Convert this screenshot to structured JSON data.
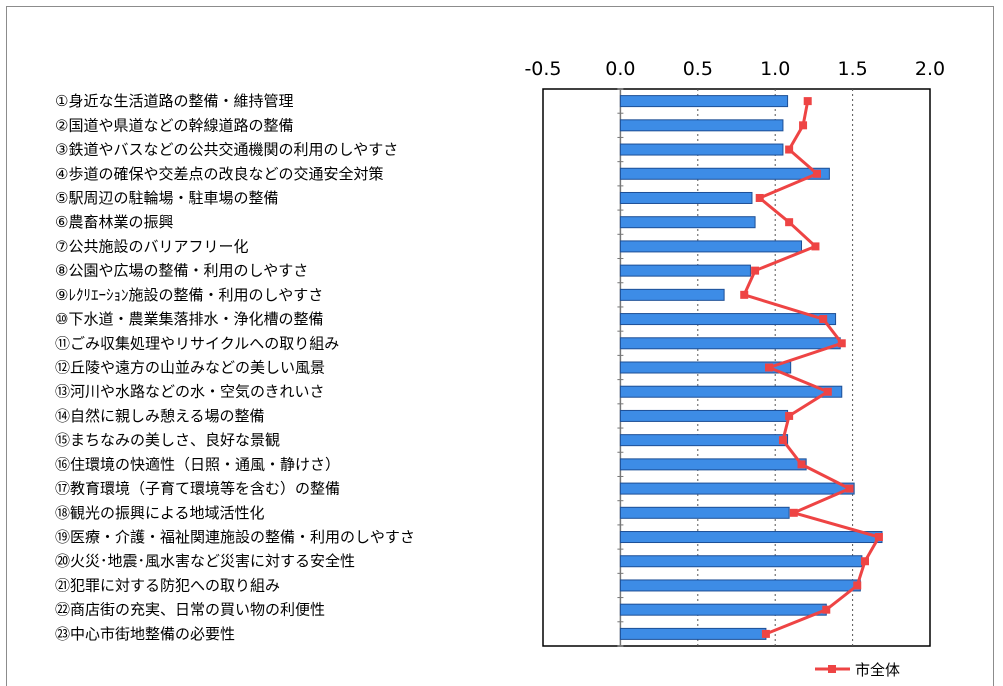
{
  "chart_data": {
    "type": "bar",
    "title": "",
    "xlabel": "",
    "ylabel": "",
    "xlim": [
      -0.5,
      2.0
    ],
    "ticks": [
      "-0.5",
      "0.0",
      "0.5",
      "1.0",
      "1.5",
      "2.0"
    ],
    "tick_values": [
      -0.5,
      0.0,
      0.5,
      1.0,
      1.5,
      2.0
    ],
    "grid": "dotted vertical at 0.5, 1.0, 1.5",
    "legend_position": "bottom-right",
    "categories": [
      "①身近な生活道路の整備・維持管理",
      "②国道や県道などの幹線道路の整備",
      "③鉄道やバスなどの公共交通機関の利用のしやすさ",
      "④歩道の確保や交差点の改良などの交通安全対策",
      "⑤駅周辺の駐輪場・駐車場の整備",
      "⑥農畜林業の振興",
      "⑦公共施設のバリアフリー化",
      "⑧公園や広場の整備・利用のしやすさ",
      "⑨ﾚｸﾘｴｰｼｮﾝ施設の整備・利用のしやすさ",
      "⑩下水道・農業集落排水・浄化槽の整備",
      "⑪ごみ収集処理やリサイクルへの取り組み",
      "⑫丘陵や遠方の山並みなどの美しい風景",
      "⑬河川や水路などの水・空気のきれいさ",
      "⑭自然に親しみ憩える場の整備",
      "⑮まちなみの美しさ、良好な景観",
      "⑯住環境の快適性（日照・通風・静けさ）",
      "⑰教育環境（子育て環境等を含む）の整備",
      "⑱観光の振興による地域活性化",
      "⑲医療・介護・福祉関連施設の整備・利用のしやすさ",
      "⑳火災･地震･風水害など災害に対する安全性",
      "㉑犯罪に対する防犯への取り組み",
      "㉒商店街の充実、日常の買い物の利便性",
      "㉓中心市街地整備の必要性"
    ],
    "series": [
      {
        "type": "bar",
        "color": "#3d8ce6",
        "values": [
          1.08,
          1.05,
          1.05,
          1.35,
          0.85,
          0.87,
          1.17,
          0.84,
          0.67,
          1.39,
          1.42,
          1.1,
          1.43,
          1.08,
          1.08,
          1.2,
          1.51,
          1.09,
          1.69,
          1.56,
          1.55,
          1.33,
          0.94
        ]
      },
      {
        "type": "line",
        "name": "市全体",
        "color": "#ee4444",
        "values": [
          1.21,
          1.18,
          1.09,
          1.27,
          0.9,
          1.09,
          1.26,
          0.87,
          0.8,
          1.31,
          1.43,
          0.96,
          1.34,
          1.09,
          1.05,
          1.17,
          1.48,
          1.12,
          1.67,
          1.58,
          1.53,
          1.33,
          0.94
        ]
      }
    ]
  }
}
